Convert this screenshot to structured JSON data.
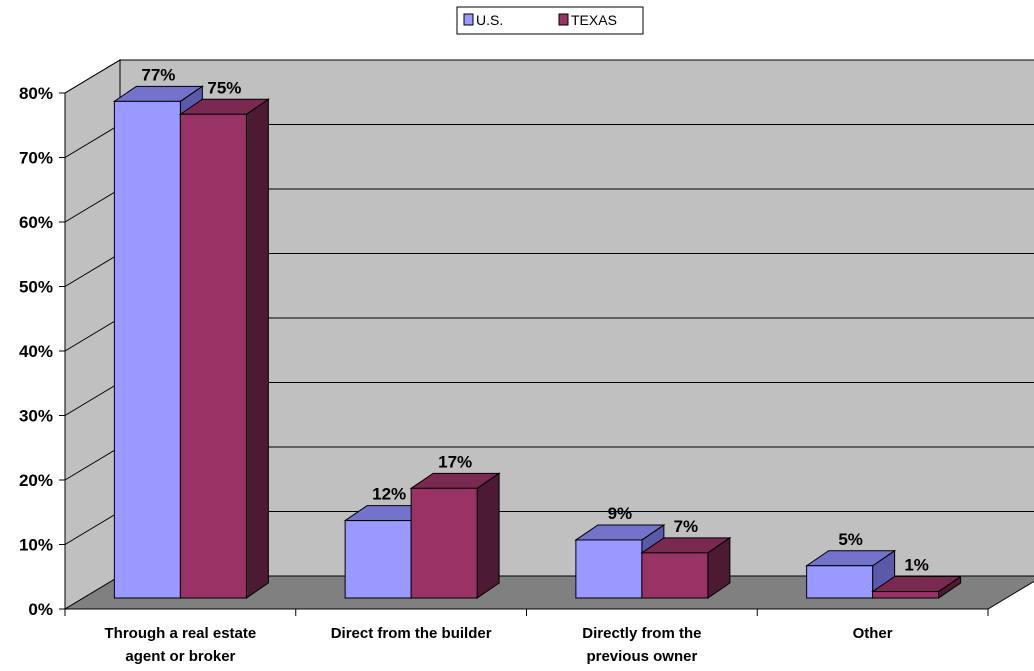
{
  "chart_data": {
    "type": "bar",
    "categories": [
      [
        "Through a real estate",
        "agent or broker"
      ],
      [
        "Direct from the builder"
      ],
      [
        "Directly from the",
        "previous owner"
      ],
      [
        "Other"
      ]
    ],
    "series": [
      {
        "name": "U.S.",
        "values": [
          77,
          12,
          9,
          5
        ],
        "color": "#9999ff"
      },
      {
        "name": "TEXAS",
        "values": [
          75,
          17,
          7,
          1
        ],
        "color": "#993366"
      }
    ],
    "data_labels": [
      [
        "77%",
        "12%",
        "9%",
        "5%"
      ],
      [
        "75%",
        "17%",
        "7%",
        "1%"
      ]
    ],
    "y_ticks": [
      "0%",
      "10%",
      "20%",
      "30%",
      "40%",
      "50%",
      "60%",
      "70%",
      "80%"
    ],
    "ylim": [
      0,
      80
    ],
    "grid": true,
    "legend_position": "top-center",
    "three_d": true,
    "colors": {
      "back_wall": "#c0c0c0",
      "floor": "#808080",
      "us_face": "#9999ff",
      "us_top": "#7373cc",
      "us_side": "#5a5aa8",
      "tx_face": "#993366",
      "tx_top": "#7a2950",
      "tx_side": "#4d1a33"
    }
  }
}
